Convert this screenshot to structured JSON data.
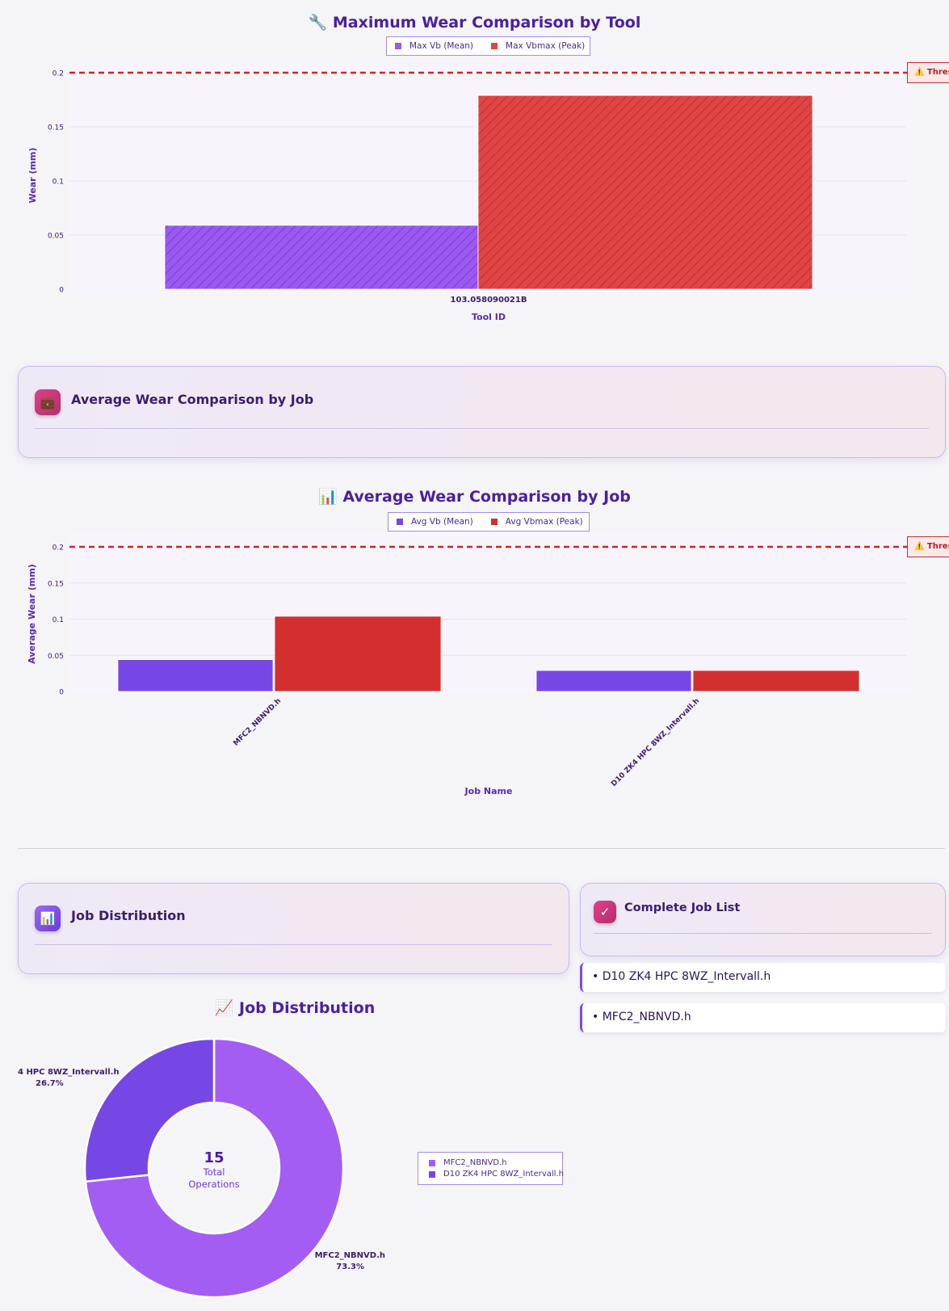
{
  "chart1": {
    "title": "🔧 Maximum Wear Comparison by Tool",
    "threshold_label": "⚠️ Thres",
    "chart_data": {
      "type": "bar",
      "categories": [
        "103.058090021B"
      ],
      "series": [
        {
          "name": "Max Vb (Mean)",
          "values": [
            0.059
          ],
          "color": "#9b59f0"
        },
        {
          "name": "Max Vbmax (Peak)",
          "values": [
            0.179
          ],
          "color": "#e04545"
        }
      ],
      "xlabel": "Tool ID",
      "ylabel": "Wear (mm)",
      "ylim": [
        0,
        0.2
      ],
      "yticks": [
        "0",
        "0.05",
        "0.1",
        "0.15",
        "0.2"
      ],
      "threshold": 0.2
    }
  },
  "card_job_avg": {
    "title": "Average Wear Comparison by Job",
    "icon": "briefcase-icon"
  },
  "chart2": {
    "title": "📊 Average Wear Comparison by Job",
    "threshold_label": "⚠️ Thres",
    "chart_data": {
      "type": "bar",
      "categories": [
        "MFC2_NBNVD.h",
        "D10 ZK4 HPC 8WZ_Intervall.h"
      ],
      "series": [
        {
          "name": "Avg Vb (Mean)",
          "values": [
            0.044,
            0.029
          ],
          "color": "#7747e6"
        },
        {
          "name": "Avg Vbmax (Peak)",
          "values": [
            0.104,
            0.029
          ],
          "color": "#d32f2f"
        }
      ],
      "xlabel": "Job Name",
      "ylabel": "Average Wear (mm)",
      "ylim": [
        0,
        0.2
      ],
      "yticks": [
        "0",
        "0.05",
        "0.1",
        "0.15",
        "0.2"
      ],
      "threshold": 0.2
    }
  },
  "card_job_dist": {
    "title": "Job Distribution",
    "icon": "bar-chart-icon"
  },
  "card_job_list": {
    "title": "Complete Job List",
    "icon": "checkmark-icon",
    "items": [
      "• D10 ZK4 HPC 8WZ_Intervall.h",
      "• MFC2_NBNVD.h"
    ]
  },
  "chart3": {
    "title": "📈 Job Distribution",
    "center_value": "15",
    "center_label_1": "Total",
    "center_label_2": "Operations",
    "slice_labels": [
      {
        "name": "MFC2_NBNVD.h",
        "pct": "73.3%"
      },
      {
        "name": "4 HPC 8WZ_Intervall.h",
        "pct": "26.7%"
      }
    ],
    "chart_data": {
      "type": "pie",
      "categories": [
        "MFC2_NBNVD.h",
        "D10 ZK4 HPC 8WZ_Intervall.h"
      ],
      "values": [
        11,
        4
      ],
      "percentages": [
        73.3,
        26.7
      ],
      "colors": [
        "#a35df2",
        "#7747e6"
      ],
      "total": 15
    }
  }
}
